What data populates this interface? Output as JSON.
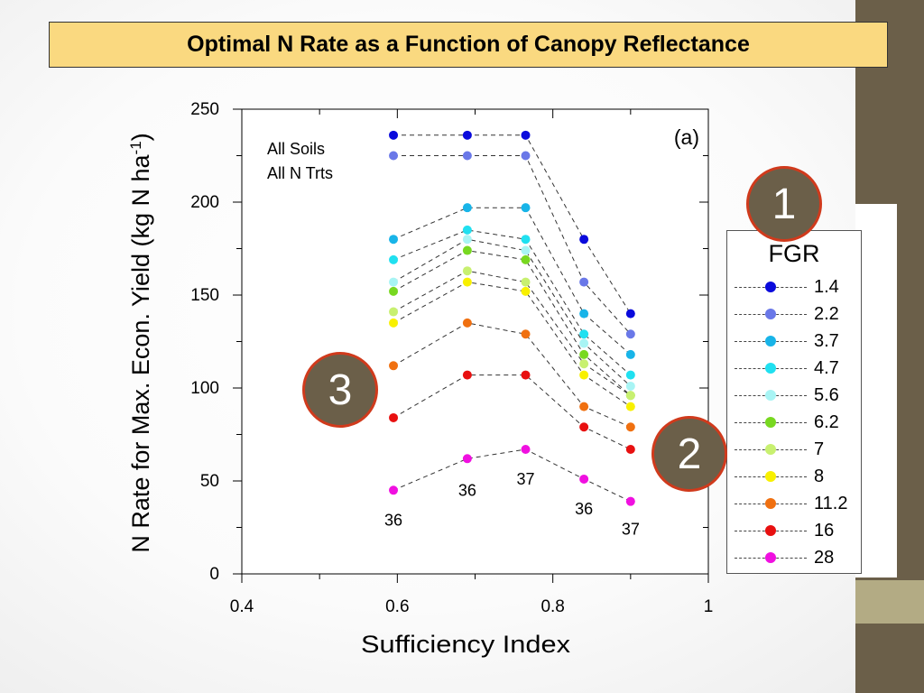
{
  "slide": {
    "title": "Optimal N Rate as a Function of Canopy Reflectance",
    "callouts": [
      "1",
      "2",
      "3"
    ]
  },
  "chart_data": {
    "type": "line",
    "panel_label": "(a)",
    "annotation": [
      "All Soils",
      "All N Trts"
    ],
    "xlabel": "Sufficiency Index",
    "ylabel": "N Rate for Max. Econ. Yield (kg N ha",
    "ylabel_superscript": "-1",
    "ylabel_suffix": ")",
    "xlim": [
      0.4,
      1.0
    ],
    "ylim": [
      0,
      250
    ],
    "xticks": [
      "0.4",
      "0.6",
      "0.8",
      "1"
    ],
    "yticks": [
      "0",
      "50",
      "100",
      "150",
      "200",
      "250"
    ],
    "legend_title": "FGR",
    "legend_position": "right",
    "series": [
      {
        "name": "1.4",
        "color": "#0a0adc",
        "x": [
          0.595,
          0.69,
          0.765,
          0.84,
          0.9
        ],
        "y": [
          236,
          236,
          236,
          180,
          140
        ]
      },
      {
        "name": "2.2",
        "color": "#6a78e8",
        "x": [
          0.595,
          0.69,
          0.765,
          0.84,
          0.9
        ],
        "y": [
          225,
          225,
          225,
          157,
          129
        ]
      },
      {
        "name": "3.7",
        "color": "#18b4e8",
        "x": [
          0.595,
          0.69,
          0.765,
          0.84,
          0.9
        ],
        "y": [
          180,
          197,
          197,
          140,
          118
        ]
      },
      {
        "name": "4.7",
        "color": "#20e0f0",
        "x": [
          0.595,
          0.69,
          0.765,
          0.84,
          0.9
        ],
        "y": [
          169,
          185,
          180,
          129,
          107
        ]
      },
      {
        "name": "5.6",
        "color": "#a8f4f4",
        "x": [
          0.595,
          0.69,
          0.765,
          0.84,
          0.9
        ],
        "y": [
          157,
          180,
          174,
          124,
          101
        ]
      },
      {
        "name": "6.2",
        "color": "#78d820",
        "x": [
          0.595,
          0.69,
          0.765,
          0.84,
          0.9
        ],
        "y": [
          152,
          174,
          169,
          118,
          96
        ]
      },
      {
        "name": "7",
        "color": "#c8f070",
        "x": [
          0.595,
          0.69,
          0.765,
          0.84,
          0.9
        ],
        "y": [
          141,
          163,
          157,
          113,
          96
        ]
      },
      {
        "name": "8",
        "color": "#f8f000",
        "x": [
          0.595,
          0.69,
          0.765,
          0.84,
          0.9
        ],
        "y": [
          135,
          157,
          152,
          107,
          90
        ]
      },
      {
        "name": "11.2",
        "color": "#f07010",
        "x": [
          0.595,
          0.69,
          0.765,
          0.84,
          0.9
        ],
        "y": [
          112,
          135,
          129,
          90,
          79
        ]
      },
      {
        "name": "16",
        "color": "#e81010",
        "x": [
          0.595,
          0.69,
          0.765,
          0.84,
          0.9
        ],
        "y": [
          84,
          107,
          107,
          79,
          67
        ]
      },
      {
        "name": "28",
        "color": "#f010e0",
        "x": [
          0.595,
          0.69,
          0.765,
          0.84,
          0.9
        ],
        "y": [
          45,
          62,
          67,
          51,
          39
        ]
      }
    ],
    "point_labels": [
      {
        "text": "36",
        "x": 0.595,
        "y": 26
      },
      {
        "text": "36",
        "x": 0.69,
        "y": 42
      },
      {
        "text": "37",
        "x": 0.765,
        "y": 48
      },
      {
        "text": "36",
        "x": 0.84,
        "y": 32
      },
      {
        "text": "37",
        "x": 0.9,
        "y": 21
      }
    ]
  }
}
